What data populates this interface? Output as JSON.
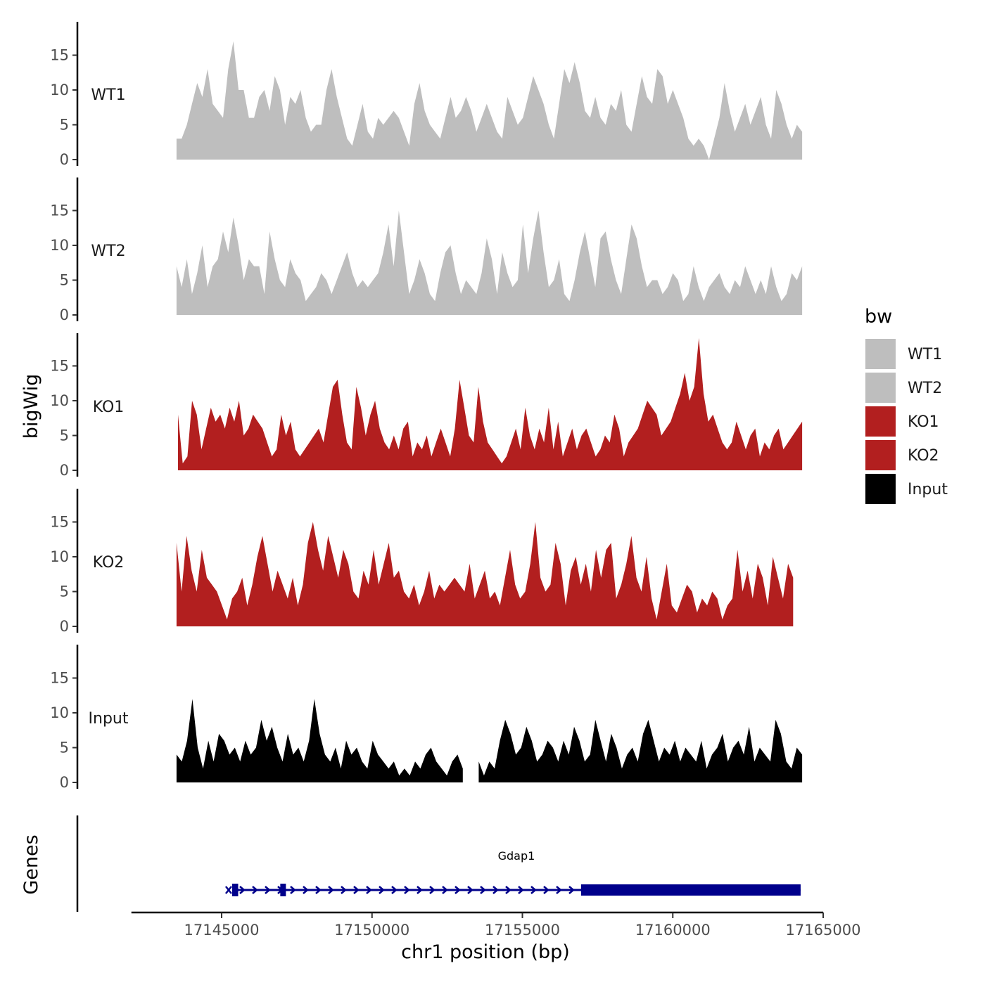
{
  "chart_data": {
    "type": "area",
    "title": "",
    "ylabel": "bigWig",
    "xlabel": "chr1 position (bp)",
    "x_ticks": [
      17145000,
      17150000,
      17155000,
      17160000,
      17165000
    ],
    "x_tick_labels": [
      "17145000",
      "17150000",
      "17155000",
      "17160000",
      "17165000"
    ],
    "xlim": [
      17142000,
      17165000
    ],
    "ylim": [
      0,
      20
    ],
    "y_ticks": [
      0,
      5,
      10,
      15
    ],
    "y_tick_labels": [
      "0",
      "5",
      "10",
      "15"
    ],
    "data_range": [
      17143500,
      17164300
    ],
    "legend": {
      "title": "bw",
      "items": [
        {
          "name": "WT1",
          "color": "#bebebe"
        },
        {
          "name": "WT2",
          "color": "#bebebe"
        },
        {
          "name": "KO1",
          "color": "#b21f1f"
        },
        {
          "name": "KO2",
          "color": "#b21f1f"
        },
        {
          "name": "Input",
          "color": "#000000"
        }
      ]
    },
    "series": [
      {
        "name": "WT1",
        "color": "#bebebe",
        "x_start": 17143500,
        "x_end": 17164300,
        "values": [
          3,
          3,
          5,
          8,
          11,
          9,
          13,
          8,
          7,
          6,
          13,
          17,
          10,
          10,
          6,
          6,
          9,
          10,
          7,
          12,
          10,
          5,
          9,
          8,
          10,
          6,
          4,
          5,
          5,
          10,
          13,
          9,
          6,
          3,
          2,
          5,
          8,
          4,
          3,
          6,
          5,
          6,
          7,
          6,
          4,
          2,
          8,
          11,
          7,
          5,
          4,
          3,
          6,
          9,
          6,
          7,
          9,
          7,
          4,
          6,
          8,
          6,
          4,
          3,
          9,
          7,
          5,
          6,
          9,
          12,
          10,
          8,
          5,
          3,
          8,
          13,
          11,
          14,
          11,
          7,
          6,
          9,
          6,
          5,
          8,
          7,
          10,
          5,
          4,
          8,
          12,
          9,
          8,
          13,
          12,
          8,
          10,
          8,
          6,
          3,
          2,
          3,
          2,
          0,
          3,
          6,
          11,
          7,
          4,
          6,
          8,
          5,
          7,
          9,
          5,
          3,
          10,
          8,
          5,
          3,
          5,
          4
        ]
      },
      {
        "name": "WT2",
        "color": "#bebebe",
        "x_start": 17143500,
        "x_end": 17164300,
        "values": [
          7,
          4,
          8,
          3,
          6,
          10,
          4,
          7,
          8,
          12,
          9,
          14,
          10,
          5,
          8,
          7,
          7,
          3,
          12,
          8,
          5,
          4,
          8,
          6,
          5,
          2,
          3,
          4,
          6,
          5,
          3,
          5,
          7,
          9,
          6,
          4,
          5,
          4,
          5,
          6,
          9,
          13,
          7,
          15,
          9,
          3,
          5,
          8,
          6,
          3,
          2,
          6,
          9,
          10,
          6,
          3,
          5,
          4,
          3,
          6,
          11,
          8,
          3,
          9,
          6,
          4,
          5,
          13,
          6,
          11,
          15,
          9,
          4,
          5,
          8,
          3,
          2,
          5,
          9,
          12,
          8,
          4,
          11,
          12,
          8,
          5,
          3,
          8,
          13,
          11,
          7,
          4,
          5,
          5,
          3,
          4,
          6,
          5,
          2,
          3,
          7,
          4,
          2,
          4,
          5,
          6,
          4,
          3,
          5,
          4,
          7,
          5,
          3,
          5,
          3,
          7,
          4,
          2,
          3,
          6,
          5,
          7
        ]
      },
      {
        "name": "KO1",
        "color": "#b21f1f",
        "x_start": 17143550,
        "x_end": 17164300,
        "values": [
          8,
          1,
          2,
          10,
          8,
          3,
          6,
          9,
          7,
          8,
          6,
          9,
          7,
          10,
          5,
          6,
          8,
          7,
          6,
          4,
          2,
          3,
          8,
          5,
          7,
          3,
          2,
          3,
          4,
          5,
          6,
          4,
          8,
          12,
          13,
          8,
          4,
          3,
          12,
          9,
          5,
          8,
          10,
          6,
          4,
          3,
          5,
          3,
          6,
          7,
          2,
          4,
          3,
          5,
          2,
          4,
          6,
          4,
          2,
          6,
          13,
          9,
          5,
          4,
          12,
          7,
          4,
          3,
          2,
          1,
          2,
          4,
          6,
          3,
          9,
          5,
          3,
          6,
          4,
          9,
          3,
          7,
          2,
          4,
          6,
          3,
          5,
          6,
          4,
          2,
          3,
          5,
          4,
          8,
          6,
          2,
          4,
          5,
          6,
          8,
          10,
          9,
          8,
          5,
          6,
          7,
          9,
          11,
          14,
          10,
          12,
          19,
          11,
          7,
          8,
          6,
          4,
          3,
          4,
          7,
          5,
          3,
          5,
          6,
          2,
          4,
          3,
          5,
          6,
          3,
          4,
          5,
          6,
          7
        ]
      },
      {
        "name": "KO2",
        "color": "#b21f1f",
        "x_start": 17143500,
        "x_end": 17164000,
        "values": [
          12,
          5,
          13,
          8,
          5,
          11,
          7,
          6,
          5,
          3,
          1,
          4,
          5,
          7,
          3,
          6,
          10,
          13,
          9,
          5,
          8,
          6,
          4,
          7,
          3,
          6,
          12,
          15,
          11,
          8,
          13,
          10,
          7,
          11,
          9,
          5,
          4,
          8,
          6,
          11,
          6,
          9,
          12,
          7,
          8,
          5,
          4,
          6,
          3,
          5,
          8,
          4,
          6,
          5,
          6,
          7,
          6,
          5,
          9,
          4,
          6,
          8,
          4,
          5,
          3,
          7,
          11,
          6,
          4,
          5,
          9,
          15,
          7,
          5,
          6,
          12,
          9,
          3,
          8,
          10,
          6,
          9,
          5,
          11,
          7,
          11,
          12,
          4,
          6,
          9,
          13,
          7,
          5,
          10,
          4,
          1,
          5,
          9,
          3,
          2,
          4,
          6,
          5,
          2,
          4,
          3,
          5,
          4,
          1,
          3,
          4,
          11,
          5,
          8,
          4,
          9,
          7,
          3,
          10,
          7,
          4,
          9,
          7
        ]
      },
      {
        "name": "Input",
        "color": "#000000",
        "x_start": 17143500,
        "x_end": 17164300,
        "values": [
          4,
          3,
          6,
          12,
          5,
          2,
          6,
          3,
          7,
          6,
          4,
          5,
          3,
          6,
          4,
          5,
          9,
          6,
          8,
          5,
          3,
          7,
          4,
          5,
          3,
          6,
          12,
          7,
          4,
          3,
          5,
          2,
          6,
          4,
          5,
          3,
          2,
          6,
          4,
          3,
          2,
          3,
          1,
          2,
          1,
          3,
          2,
          4,
          5,
          3,
          2,
          1,
          3,
          4,
          2,
          null,
          null,
          3,
          1,
          3,
          2,
          6,
          9,
          7,
          4,
          5,
          8,
          6,
          3,
          4,
          6,
          5,
          3,
          6,
          4,
          8,
          6,
          3,
          4,
          9,
          6,
          3,
          7,
          5,
          2,
          4,
          5,
          3,
          7,
          9,
          6,
          3,
          5,
          4,
          6,
          3,
          5,
          4,
          3,
          6,
          2,
          4,
          5,
          7,
          3,
          5,
          6,
          4,
          8,
          3,
          5,
          4,
          3,
          9,
          7,
          3,
          2,
          5,
          4
        ]
      }
    ],
    "gene_track": {
      "ylabel": "Genes",
      "gene_name": "Gdap1",
      "strand": "+",
      "tx_start": 17145350,
      "tx_end": 17164250,
      "exons": [
        [
          17145350,
          17145550
        ],
        [
          17146950,
          17147100
        ],
        [
          17156950,
          17164250
        ]
      ],
      "color": "#00008b"
    }
  }
}
